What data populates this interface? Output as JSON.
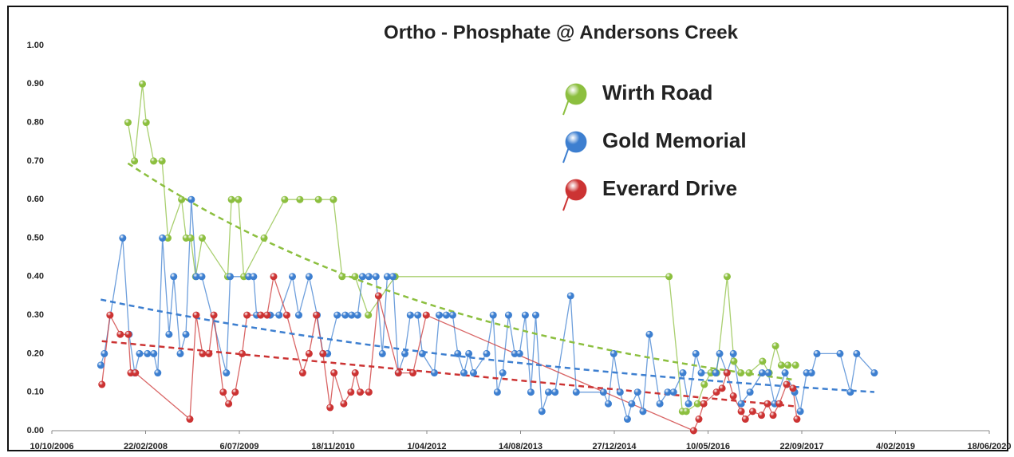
{
  "chart_data": {
    "type": "line",
    "title": "Ortho - Phosphate  @ Andersons Creek",
    "xlim": [
      "2006-10-10",
      "2020-06-18"
    ],
    "xticks": [
      {
        "value": "2006-10-10",
        "label": "10/10/2006"
      },
      {
        "value": "2008-02-22",
        "label": "22/02/2008"
      },
      {
        "value": "2009-07-06",
        "label": "6/07/2009"
      },
      {
        "value": "2010-11-18",
        "label": "18/11/2010"
      },
      {
        "value": "2012-04-01",
        "label": "1/04/2012"
      },
      {
        "value": "2013-08-14",
        "label": "14/08/2013"
      },
      {
        "value": "2014-12-27",
        "label": "27/12/2014"
      },
      {
        "value": "2016-05-10",
        "label": "10/05/2016"
      },
      {
        "value": "2017-09-22",
        "label": "22/09/2017"
      },
      {
        "value": "2019-02-04",
        "label": "4/02/2019"
      },
      {
        "value": "2020-06-18",
        "label": "18/06/2020"
      }
    ],
    "ylim": [
      0,
      1
    ],
    "yticks": [
      {
        "value": 0,
        "label": "0.00"
      },
      {
        "value": 0.1,
        "label": "0.10"
      },
      {
        "value": 0.2,
        "label": "0.20"
      },
      {
        "value": 0.3,
        "label": "0.30"
      },
      {
        "value": 0.4,
        "label": "0.40"
      },
      {
        "value": 0.5,
        "label": "0.50"
      },
      {
        "value": 0.6,
        "label": "0.60"
      },
      {
        "value": 0.7,
        "label": "0.70"
      },
      {
        "value": 0.8,
        "label": "0.80"
      },
      {
        "value": 0.9,
        "label": "0.90"
      },
      {
        "value": 1,
        "label": "1.00"
      }
    ],
    "grid": false,
    "legend": "upper-center-right",
    "series": [
      {
        "name": "Wirth Road",
        "color": "#8cbf3f",
        "trendline": "exponential",
        "x": [
          "2007-11-20",
          "2007-12-25",
          "2008-02-05",
          "2008-02-25",
          "2008-04-05",
          "2008-05-20",
          "2008-06-20",
          "2008-09-01",
          "2008-09-25",
          "2008-10-20",
          "2008-11-15",
          "2008-12-20",
          "2009-05-05",
          "2009-05-25",
          "2009-07-01",
          "2009-07-30",
          "2009-11-15",
          "2010-03-05",
          "2010-05-25",
          "2010-09-01",
          "2010-11-20",
          "2011-01-05",
          "2011-03-15",
          "2011-05-25",
          "2011-10-15",
          "2015-10-15",
          "2015-12-25",
          "2016-01-15",
          "2016-03-15",
          "2016-04-20",
          "2016-05-25",
          "2016-06-25",
          "2016-08-20",
          "2016-09-25",
          "2016-11-01",
          "2016-12-15",
          "2017-02-25",
          "2017-04-01",
          "2017-05-05",
          "2017-06-05",
          "2017-07-10",
          "2017-08-20"
        ],
        "values": [
          0.8,
          0.7,
          0.9,
          0.8,
          0.7,
          0.7,
          0.5,
          0.6,
          0.5,
          0.5,
          0.4,
          0.5,
          0.4,
          0.6,
          0.6,
          0.4,
          0.5,
          0.6,
          0.6,
          0.6,
          0.6,
          0.4,
          0.4,
          0.3,
          0.4,
          0.4,
          0.05,
          0.05,
          0.07,
          0.12,
          0.15,
          0.15,
          0.4,
          0.18,
          0.15,
          0.15,
          0.18,
          0.15,
          0.22,
          0.17,
          0.17,
          0.17
        ]
      },
      {
        "name": "Gold Memorial",
        "color": "#3d7fd0",
        "trendline": "exponential",
        "x": [
          "2007-06-28",
          "2007-07-17",
          "2007-10-23",
          "2007-11-26",
          "2007-12-26",
          "2008-01-21",
          "2008-03-03",
          "2008-04-06",
          "2008-04-27",
          "2008-05-22",
          "2008-06-26",
          "2008-07-21",
          "2008-08-25",
          "2008-09-24",
          "2008-10-23",
          "2008-11-18",
          "2008-12-18",
          "2009-04-28",
          "2009-05-18",
          "2009-08-25",
          "2009-09-20",
          "2009-10-06",
          "2009-12-18",
          "2010-02-03",
          "2010-04-15",
          "2010-05-19",
          "2010-07-13",
          "2010-08-25",
          "2010-09-25",
          "2010-10-20",
          "2010-12-10",
          "2011-01-22",
          "2011-02-25",
          "2011-03-29",
          "2011-04-24",
          "2011-05-28",
          "2011-07-05",
          "2011-08-08",
          "2011-09-03",
          "2011-10-03",
          "2011-11-01",
          "2011-12-06",
          "2012-01-04",
          "2012-02-13",
          "2012-03-08",
          "2012-05-11",
          "2012-06-06",
          "2012-07-14",
          "2012-08-17",
          "2012-09-13",
          "2012-10-16",
          "2012-11-11",
          "2012-12-06",
          "2013-02-14",
          "2013-03-21",
          "2013-04-12",
          "2013-05-11",
          "2013-06-11",
          "2013-07-14",
          "2013-08-09",
          "2013-09-08",
          "2013-10-08",
          "2013-11-03",
          "2013-12-06",
          "2014-01-10",
          "2014-02-14",
          "2014-05-08",
          "2014-06-07",
          "2014-10-30",
          "2014-11-25",
          "2014-12-24",
          "2015-01-27",
          "2015-03-07",
          "2015-03-30",
          "2015-04-30",
          "2015-05-29",
          "2015-07-02",
          "2015-08-27",
          "2015-10-08",
          "2015-11-08",
          "2015-12-28",
          "2016-01-27",
          "2016-03-06",
          "2016-04-04",
          "2016-06-20",
          "2016-07-11",
          "2016-08-19",
          "2016-09-22",
          "2016-11-03",
          "2016-12-20",
          "2017-02-23",
          "2017-03-27",
          "2017-04-30",
          "2017-06-25",
          "2017-08-15",
          "2017-09-14",
          "2017-10-18",
          "2017-11-13",
          "2017-12-12",
          "2018-04-14",
          "2018-06-08",
          "2018-07-12",
          "2018-10-14"
        ],
        "values": [
          0.17,
          0.2,
          0.5,
          0.25,
          0.15,
          0.2,
          0.2,
          0.2,
          0.15,
          0.5,
          0.25,
          0.4,
          0.2,
          0.25,
          0.6,
          0.4,
          0.4,
          0.15,
          0.4,
          0.4,
          0.4,
          0.3,
          0.3,
          0.3,
          0.4,
          0.3,
          0.4,
          0.3,
          0.2,
          0.2,
          0.3,
          0.3,
          0.3,
          0.3,
          0.4,
          0.4,
          0.4,
          0.2,
          0.4,
          0.4,
          0.15,
          0.2,
          0.3,
          0.3,
          0.2,
          0.15,
          0.3,
          0.3,
          0.3,
          0.2,
          0.15,
          0.2,
          0.15,
          0.2,
          0.3,
          0.1,
          0.15,
          0.3,
          0.2,
          0.2,
          0.3,
          0.1,
          0.3,
          0.05,
          0.1,
          0.1,
          0.35,
          0.1,
          0.1,
          0.07,
          0.2,
          0.1,
          0.03,
          0.07,
          0.1,
          0.05,
          0.25,
          0.07,
          0.1,
          0.1,
          0.15,
          0.07,
          0.2,
          0.15,
          0.15,
          0.2,
          0.15,
          0.2,
          0.07,
          0.1,
          0.15,
          0.15,
          0.07,
          0.15,
          0.1,
          0.05,
          0.15,
          0.15,
          0.2,
          0.2,
          0.1,
          0.2,
          0.15
        ]
      },
      {
        "name": "Everard Drive",
        "color": "#cc3333",
        "trendline": "linear",
        "x": [
          "2007-07-04",
          "2007-08-16",
          "2007-10-10",
          "2007-11-22",
          "2007-12-05",
          "2007-12-30",
          "2008-10-15",
          "2008-11-18",
          "2008-12-22",
          "2009-01-25",
          "2009-02-20",
          "2009-04-11",
          "2009-05-10",
          "2009-06-14",
          "2009-07-21",
          "2009-08-16",
          "2009-10-28",
          "2009-12-01",
          "2010-01-05",
          "2010-03-16",
          "2010-06-09",
          "2010-07-13",
          "2010-08-21",
          "2010-09-25",
          "2010-11-02",
          "2010-11-23",
          "2011-01-14",
          "2011-02-21",
          "2011-03-16",
          "2011-04-12",
          "2011-05-28",
          "2011-07-18",
          "2011-11-01",
          "2012-01-18",
          "2012-03-29",
          "2016-02-23",
          "2016-03-22",
          "2016-04-17",
          "2016-06-24",
          "2016-07-24",
          "2016-08-19",
          "2016-09-22",
          "2016-11-03",
          "2016-11-25",
          "2017-01-03",
          "2017-02-19",
          "2017-03-23",
          "2017-04-22",
          "2017-05-25",
          "2017-07-03",
          "2017-08-06",
          "2017-08-27"
        ],
        "values": [
          0.12,
          0.3,
          0.25,
          0.25,
          0.15,
          0.15,
          0.03,
          0.3,
          0.2,
          0.2,
          0.3,
          0.1,
          0.07,
          0.1,
          0.2,
          0.3,
          0.3,
          0.3,
          0.4,
          0.3,
          0.15,
          0.2,
          0.3,
          0.2,
          0.06,
          0.15,
          0.07,
          0.1,
          0.15,
          0.1,
          0.1,
          0.35,
          0.15,
          0.15,
          0.3,
          0,
          0.03,
          0.07,
          0.1,
          0.11,
          0.15,
          0.09,
          0.05,
          0.03,
          0.05,
          0.04,
          0.07,
          0.04,
          0.07,
          0.12,
          0.11,
          0.03
        ]
      }
    ]
  }
}
